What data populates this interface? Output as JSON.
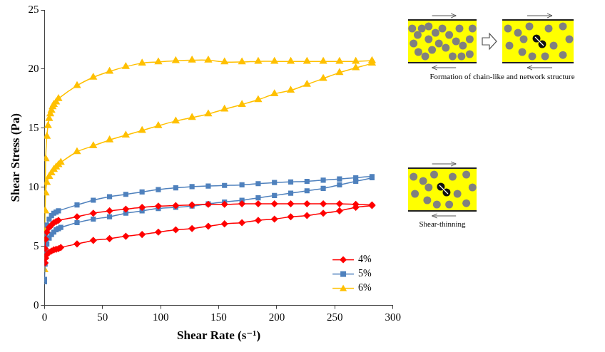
{
  "chart_data": {
    "type": "line",
    "x_label": "Shear Rate (s⁻¹)",
    "y_label": "Shear Stress (Pa)",
    "xlim": [
      0,
      300
    ],
    "xticks": [
      0,
      50,
      100,
      150,
      200,
      250,
      300
    ],
    "ylim": [
      0,
      25
    ],
    "yticks": [
      0,
      5,
      10,
      15,
      20,
      25
    ],
    "grid": false,
    "legend": "lower right",
    "annotations": [
      {
        "text": "Formation of chain-like and network structure"
      },
      {
        "text": "Shear-thinning"
      }
    ],
    "series": [
      {
        "name": "4%",
        "color": "#ff0000",
        "marker": "diamond",
        "x": [
          0.5,
          1,
          2,
          4,
          6,
          8,
          10,
          12,
          28,
          42,
          56,
          70,
          84,
          98,
          113,
          127,
          141,
          155,
          170,
          184,
          198,
          212,
          226,
          240,
          254,
          268,
          282,
          282,
          268,
          254,
          240,
          226,
          212,
          198,
          184,
          170,
          155,
          141,
          127,
          113,
          98,
          84,
          70,
          56,
          42,
          28,
          14,
          12,
          10,
          8,
          6,
          4,
          2,
          1,
          0.5
        ],
        "values": [
          4.8,
          5.6,
          6.2,
          6.6,
          6.8,
          7.0,
          7.1,
          7.2,
          7.5,
          7.8,
          8.0,
          8.15,
          8.3,
          8.4,
          8.45,
          8.5,
          8.55,
          8.55,
          8.6,
          8.6,
          8.6,
          8.6,
          8.6,
          8.6,
          8.6,
          8.55,
          8.5,
          8.45,
          8.3,
          8.0,
          7.8,
          7.6,
          7.5,
          7.3,
          7.2,
          7.0,
          6.9,
          6.7,
          6.5,
          6.4,
          6.2,
          6.0,
          5.85,
          5.65,
          5.5,
          5.2,
          4.9,
          4.8,
          4.75,
          4.7,
          4.6,
          4.5,
          4.3,
          4.0,
          3.6
        ]
      },
      {
        "name": "5%",
        "color": "#4f81bd",
        "marker": "square",
        "x": [
          0,
          0.5,
          1,
          2,
          4,
          6,
          8,
          10,
          12,
          28,
          42,
          56,
          70,
          84,
          98,
          113,
          127,
          141,
          155,
          170,
          184,
          198,
          212,
          226,
          240,
          254,
          268,
          282,
          282,
          268,
          254,
          240,
          226,
          212,
          198,
          184,
          170,
          155,
          141,
          127,
          113,
          98,
          84,
          70,
          56,
          42,
          28,
          14,
          12,
          10,
          8,
          6,
          4,
          2,
          1,
          0.5,
          0
        ],
        "values": [
          2.0,
          5.0,
          6.0,
          6.8,
          7.3,
          7.6,
          7.8,
          7.9,
          8.0,
          8.5,
          8.9,
          9.2,
          9.4,
          9.6,
          9.8,
          9.95,
          10.05,
          10.1,
          10.15,
          10.2,
          10.3,
          10.4,
          10.45,
          10.5,
          10.6,
          10.7,
          10.8,
          10.9,
          10.8,
          10.5,
          10.2,
          9.9,
          9.7,
          9.5,
          9.3,
          9.1,
          8.9,
          8.75,
          8.6,
          8.4,
          8.3,
          8.2,
          8.0,
          7.8,
          7.5,
          7.3,
          7.0,
          6.6,
          6.5,
          6.4,
          6.2,
          6.0,
          5.7,
          5.2,
          4.5,
          3.5,
          2.2
        ]
      },
      {
        "name": "6%",
        "color": "#ffc000",
        "marker": "triangle",
        "x": [
          0,
          0.2,
          0.5,
          1,
          2,
          3,
          4,
          5,
          6,
          7,
          8,
          10,
          12,
          28,
          42,
          56,
          70,
          84,
          98,
          113,
          127,
          141,
          155,
          170,
          184,
          198,
          212,
          226,
          240,
          254,
          268,
          282,
          282,
          268,
          254,
          240,
          226,
          212,
          198,
          184,
          170,
          155,
          141,
          127,
          113,
          98,
          84,
          70,
          56,
          42,
          28,
          14,
          12,
          10,
          8,
          6,
          4,
          2,
          1,
          0.5
        ],
        "values": [
          3.0,
          6.5,
          8.0,
          12.4,
          14.3,
          15.2,
          15.8,
          16.2,
          16.5,
          16.8,
          17.0,
          17.2,
          17.5,
          18.6,
          19.3,
          19.8,
          20.2,
          20.5,
          20.6,
          20.7,
          20.75,
          20.75,
          20.6,
          20.6,
          20.65,
          20.65,
          20.65,
          20.65,
          20.65,
          20.65,
          20.65,
          20.7,
          20.5,
          20.1,
          19.7,
          19.2,
          18.7,
          18.2,
          17.9,
          17.4,
          17.0,
          16.6,
          16.2,
          15.9,
          15.6,
          15.2,
          14.8,
          14.4,
          14.0,
          13.5,
          13.0,
          12.1,
          11.9,
          11.7,
          11.5,
          11.2,
          10.9,
          10.4,
          9.5,
          8.0
        ]
      }
    ]
  }
}
